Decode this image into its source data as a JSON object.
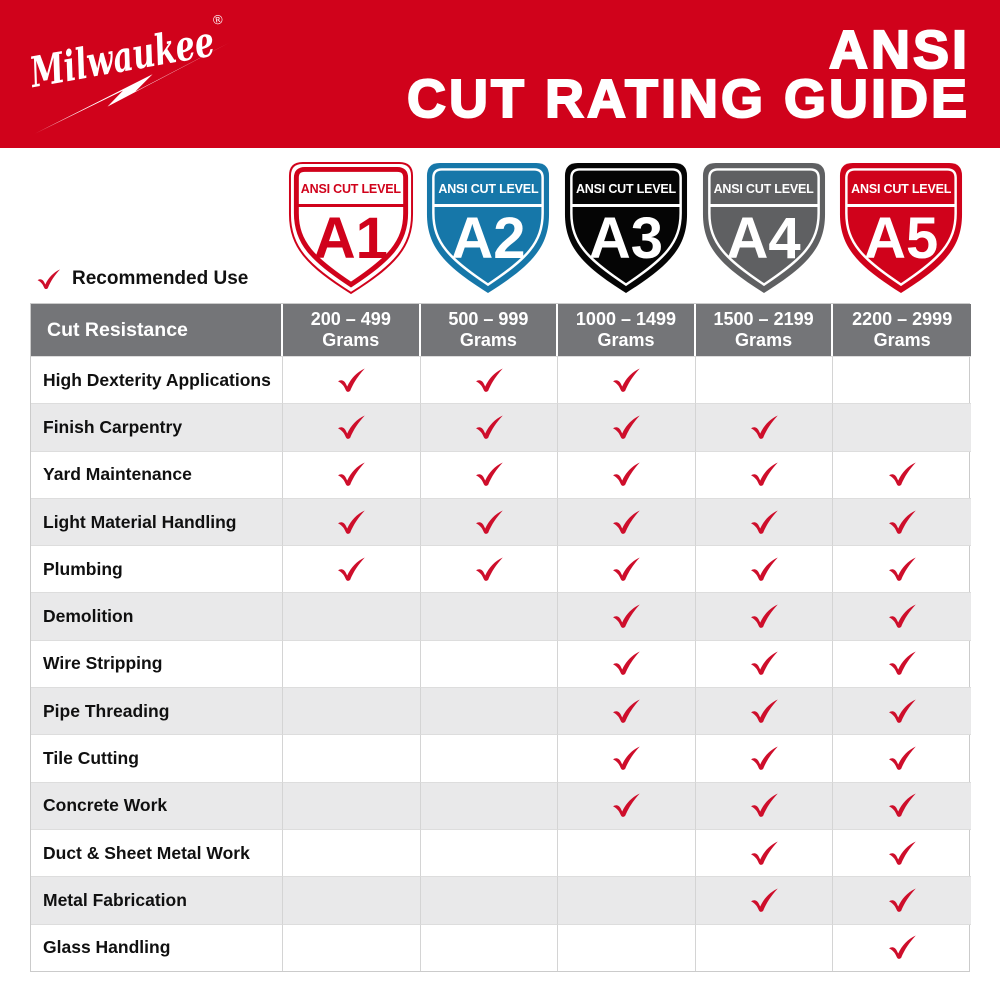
{
  "brand": {
    "logo_text": "Milwaukee",
    "registered_mark": "®",
    "logo_color": "#FFFFFF"
  },
  "header": {
    "title_line1": "ANSI",
    "title_line2": "CUT RATING GUIDE",
    "bg_color": "#D0021B",
    "text_color": "#FFFFFF"
  },
  "shields": [
    {
      "level": "A1",
      "label": "ANSI CUT LEVEL",
      "style": "outline",
      "fill": "#FFFFFF",
      "accent": "#D0021B"
    },
    {
      "level": "A2",
      "label": "ANSI CUT LEVEL",
      "style": "solid",
      "fill": "#1677A9",
      "accent": "#FFFFFF"
    },
    {
      "level": "A3",
      "label": "ANSI CUT LEVEL",
      "style": "solid",
      "fill": "#050505",
      "accent": "#FFFFFF"
    },
    {
      "level": "A4",
      "label": "ANSI CUT LEVEL",
      "style": "solid",
      "fill": "#5F6062",
      "accent": "#FFFFFF"
    },
    {
      "level": "A5",
      "label": "ANSI CUT LEVEL",
      "style": "solid",
      "fill": "#D0021B",
      "accent": "#FFFFFF"
    }
  ],
  "legend": {
    "label": "Recommended Use",
    "check_color": "#CE0E2B"
  },
  "table": {
    "corner_label": "Cut Resistance",
    "header_bg": "#747578",
    "alt_row_bg": "#E9E9EA",
    "columns": [
      {
        "range": "200 – 499",
        "unit": "Grams"
      },
      {
        "range": "500 – 999",
        "unit": "Grams"
      },
      {
        "range": "1000 – 1499",
        "unit": "Grams"
      },
      {
        "range": "1500 – 2199",
        "unit": "Grams"
      },
      {
        "range": "2200 – 2999",
        "unit": "Grams"
      }
    ],
    "rows": [
      {
        "name": "High Dexterity Applications",
        "checks": [
          true,
          true,
          true,
          false,
          false
        ]
      },
      {
        "name": "Finish Carpentry",
        "checks": [
          true,
          true,
          true,
          true,
          false
        ]
      },
      {
        "name": "Yard Maintenance",
        "checks": [
          true,
          true,
          true,
          true,
          true
        ]
      },
      {
        "name": "Light Material Handling",
        "checks": [
          true,
          true,
          true,
          true,
          true
        ]
      },
      {
        "name": "Plumbing",
        "checks": [
          true,
          true,
          true,
          true,
          true
        ]
      },
      {
        "name": "Demolition",
        "checks": [
          false,
          false,
          true,
          true,
          true
        ]
      },
      {
        "name": "Wire Stripping",
        "checks": [
          false,
          false,
          true,
          true,
          true
        ]
      },
      {
        "name": "Pipe Threading",
        "checks": [
          false,
          false,
          true,
          true,
          true
        ]
      },
      {
        "name": "Tile Cutting",
        "checks": [
          false,
          false,
          true,
          true,
          true
        ]
      },
      {
        "name": "Concrete Work",
        "checks": [
          false,
          false,
          true,
          true,
          true
        ]
      },
      {
        "name": "Duct & Sheet Metal Work",
        "checks": [
          false,
          false,
          false,
          true,
          true
        ]
      },
      {
        "name": "Metal Fabrication",
        "checks": [
          false,
          false,
          false,
          true,
          true
        ]
      },
      {
        "name": "Glass Handling",
        "checks": [
          false,
          false,
          false,
          false,
          true
        ]
      }
    ]
  },
  "chart_data": {
    "type": "table",
    "title": "ANSI CUT RATING GUIDE",
    "legend": "Recommended Use",
    "columns": [
      "Cut Resistance",
      "A1: 200 – 499 Grams",
      "A2: 500 – 999 Grams",
      "A3: 1000 – 1499 Grams",
      "A4: 1500 – 2199 Grams",
      "A5: 2200 – 2999 Grams"
    ],
    "rows": [
      [
        "High Dexterity Applications",
        true,
        true,
        true,
        false,
        false
      ],
      [
        "Finish Carpentry",
        true,
        true,
        true,
        true,
        false
      ],
      [
        "Yard Maintenance",
        true,
        true,
        true,
        true,
        true
      ],
      [
        "Light Material Handling",
        true,
        true,
        true,
        true,
        true
      ],
      [
        "Plumbing",
        true,
        true,
        true,
        true,
        true
      ],
      [
        "Demolition",
        false,
        false,
        true,
        true,
        true
      ],
      [
        "Wire Stripping",
        false,
        false,
        true,
        true,
        true
      ],
      [
        "Pipe Threading",
        false,
        false,
        true,
        true,
        true
      ],
      [
        "Tile Cutting",
        false,
        false,
        true,
        true,
        true
      ],
      [
        "Concrete Work",
        false,
        false,
        true,
        true,
        true
      ],
      [
        "Duct & Sheet Metal Work",
        false,
        false,
        false,
        true,
        true
      ],
      [
        "Metal Fabrication",
        false,
        false,
        false,
        true,
        true
      ],
      [
        "Glass Handling",
        false,
        false,
        false,
        false,
        true
      ]
    ]
  }
}
